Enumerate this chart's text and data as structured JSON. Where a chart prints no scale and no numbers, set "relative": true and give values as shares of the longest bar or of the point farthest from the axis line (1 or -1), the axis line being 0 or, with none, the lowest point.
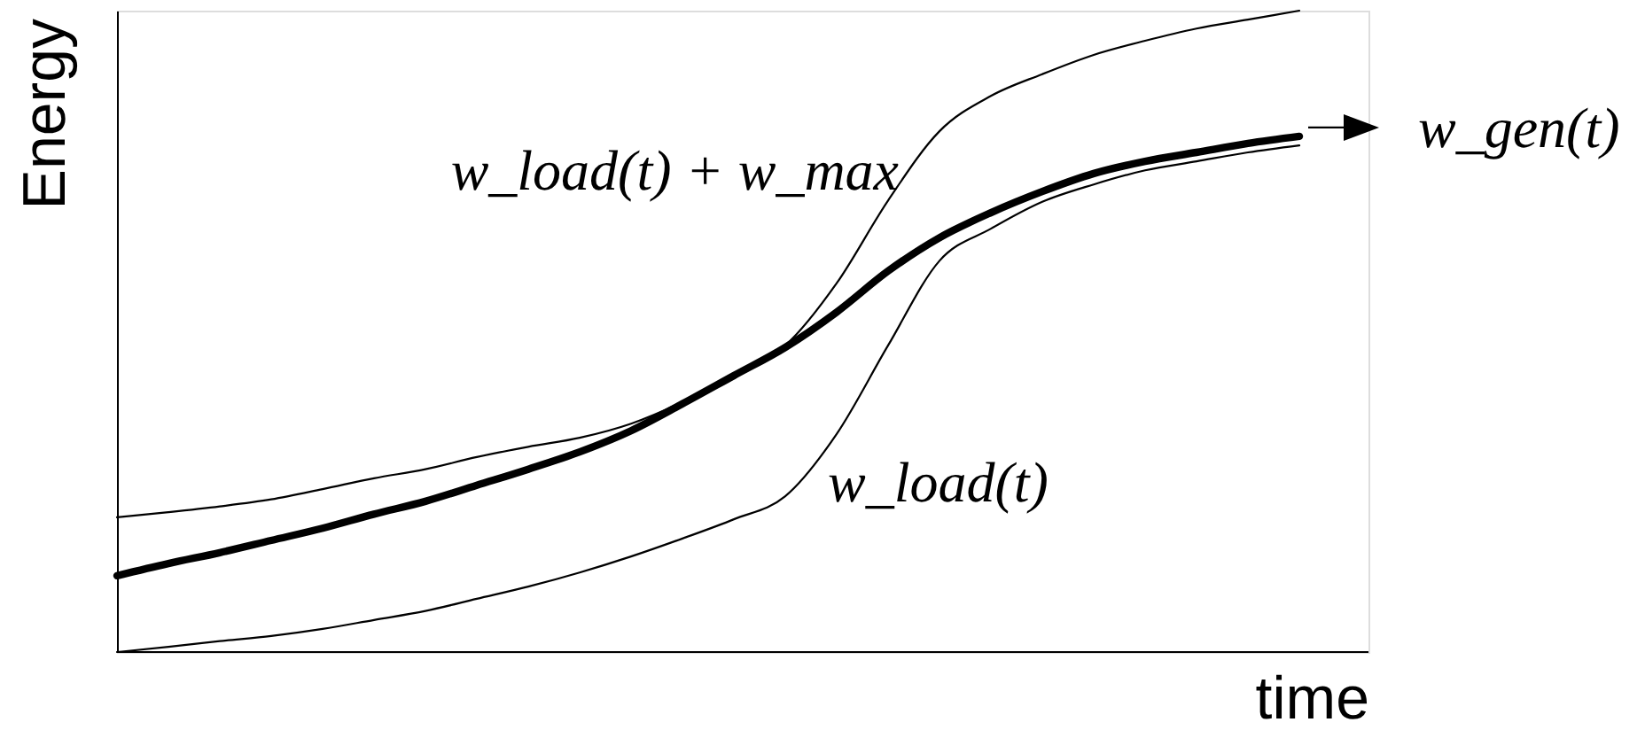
{
  "chart_data": {
    "type": "line",
    "relative": true,
    "xlabel": "time",
    "ylabel": "Energy",
    "categories": [
      null,
      null,
      null,
      null,
      null,
      null,
      null,
      null,
      null,
      null,
      null,
      null,
      null,
      null,
      null,
      null,
      null,
      null,
      null,
      null,
      null,
      null,
      null,
      null
    ],
    "series": [
      {
        "name": "w_load(t) + w_max",
        "color": "#000000",
        "values": [
          0.21,
          0.218,
          0.227,
          0.238,
          0.254,
          0.271,
          0.285,
          0.304,
          0.32,
          0.334,
          0.356,
          0.39,
          0.434,
          0.478,
          0.575,
          0.704,
          0.812,
          0.867,
          0.901,
          0.931,
          0.953,
          0.972,
          0.986,
          1.0
        ]
      },
      {
        "name": "w_load(t)",
        "color": "#000000",
        "values": [
          0.0,
          0.008,
          0.017,
          0.025,
          0.036,
          0.05,
          0.064,
          0.083,
          0.102,
          0.124,
          0.149,
          0.177,
          0.207,
          0.243,
          0.34,
          0.478,
          0.61,
          0.66,
          0.702,
          0.729,
          0.751,
          0.765,
          0.779,
          0.79
        ]
      },
      {
        "name": "w_gen(t)",
        "color": "#000000",
        "values": [
          0.119,
          0.138,
          0.155,
          0.174,
          0.193,
          0.215,
          0.235,
          0.26,
          0.285,
          0.312,
          0.345,
          0.387,
          0.431,
          0.475,
          0.53,
          0.594,
          0.646,
          0.685,
          0.718,
          0.746,
          0.765,
          0.779,
          0.793,
          0.804
        ]
      }
    ]
  }
}
